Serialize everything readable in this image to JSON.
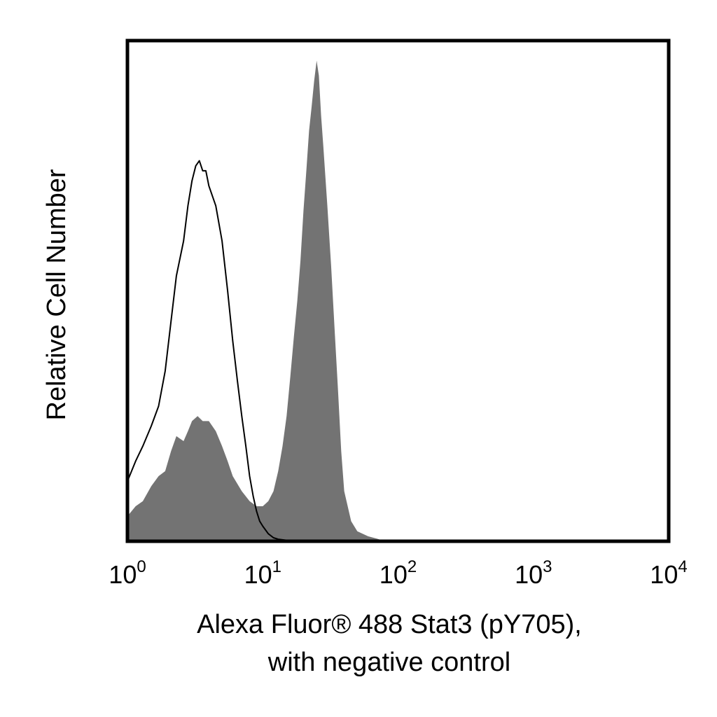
{
  "chart_data": {
    "type": "area",
    "xscale": "log",
    "xlim": [
      1,
      10000
    ],
    "ylim": [
      0,
      1
    ],
    "grid": false,
    "xlabel_lines": [
      "Alexa Fluor® 488 Stat3 (pY705),",
      "with negative control"
    ],
    "ylabel": "Relative Cell Number",
    "x_ticks": [
      {
        "value": 1,
        "base": "10",
        "exp": "0"
      },
      {
        "value": 10,
        "base": "10",
        "exp": "1"
      },
      {
        "value": 100,
        "base": "10",
        "exp": "2"
      },
      {
        "value": 1000,
        "base": "10",
        "exp": "3"
      },
      {
        "value": 10000,
        "base": "10",
        "exp": "4"
      }
    ],
    "colors": {
      "filled": "#737373",
      "outline": "#000000",
      "frame": "#000000"
    },
    "series": [
      {
        "style": "filled",
        "points": [
          [
            1.0,
            0.05
          ],
          [
            1.15,
            0.07
          ],
          [
            1.3,
            0.08
          ],
          [
            1.5,
            0.11
          ],
          [
            1.7,
            0.13
          ],
          [
            1.9,
            0.14
          ],
          [
            2.1,
            0.18
          ],
          [
            2.3,
            0.21
          ],
          [
            2.6,
            0.2
          ],
          [
            2.8,
            0.22
          ],
          [
            3.0,
            0.24
          ],
          [
            3.3,
            0.25
          ],
          [
            3.6,
            0.24
          ],
          [
            4.0,
            0.24
          ],
          [
            4.5,
            0.22
          ],
          [
            5.0,
            0.19
          ],
          [
            5.5,
            0.16
          ],
          [
            6.0,
            0.13
          ],
          [
            7.0,
            0.1
          ],
          [
            8.0,
            0.08
          ],
          [
            9.0,
            0.07
          ],
          [
            10.0,
            0.07
          ],
          [
            11.0,
            0.08
          ],
          [
            12.0,
            0.1
          ],
          [
            13.0,
            0.14
          ],
          [
            14.0,
            0.19
          ],
          [
            15.0,
            0.25
          ],
          [
            16.0,
            0.33
          ],
          [
            17.0,
            0.41
          ],
          [
            18.0,
            0.48
          ],
          [
            19.0,
            0.56
          ],
          [
            20.0,
            0.66
          ],
          [
            21.0,
            0.74
          ],
          [
            22.0,
            0.82
          ],
          [
            23.0,
            0.87
          ],
          [
            24.0,
            0.92
          ],
          [
            25.0,
            0.96
          ],
          [
            26.0,
            0.93
          ],
          [
            27.0,
            0.85
          ],
          [
            28.0,
            0.79
          ],
          [
            30.0,
            0.67
          ],
          [
            32.0,
            0.55
          ],
          [
            34.0,
            0.42
          ],
          [
            36.0,
            0.3
          ],
          [
            38.0,
            0.18
          ],
          [
            40.0,
            0.1
          ],
          [
            45.0,
            0.04
          ],
          [
            50.0,
            0.02
          ],
          [
            60.0,
            0.01
          ],
          [
            70.0,
            0.005
          ],
          [
            80.0,
            0.0
          ]
        ]
      },
      {
        "style": "outline",
        "points": [
          [
            1.0,
            0.12
          ],
          [
            1.15,
            0.16
          ],
          [
            1.3,
            0.19
          ],
          [
            1.5,
            0.23
          ],
          [
            1.7,
            0.27
          ],
          [
            1.9,
            0.34
          ],
          [
            2.1,
            0.44
          ],
          [
            2.3,
            0.53
          ],
          [
            2.6,
            0.6
          ],
          [
            2.8,
            0.67
          ],
          [
            3.0,
            0.72
          ],
          [
            3.2,
            0.75
          ],
          [
            3.4,
            0.76
          ],
          [
            3.6,
            0.74
          ],
          [
            3.8,
            0.74
          ],
          [
            4.0,
            0.71
          ],
          [
            4.5,
            0.67
          ],
          [
            5.0,
            0.6
          ],
          [
            5.5,
            0.5
          ],
          [
            6.0,
            0.4
          ],
          [
            6.5,
            0.32
          ],
          [
            7.0,
            0.25
          ],
          [
            7.5,
            0.19
          ],
          [
            8.0,
            0.13
          ],
          [
            8.5,
            0.09
          ],
          [
            9.0,
            0.06
          ],
          [
            9.5,
            0.04
          ],
          [
            10.0,
            0.03
          ],
          [
            11.0,
            0.015
          ],
          [
            12.0,
            0.007
          ],
          [
            13.0,
            0.004
          ],
          [
            15.0,
            0.002
          ],
          [
            20.0,
            0.001
          ],
          [
            25.0,
            0.0
          ]
        ]
      }
    ]
  }
}
